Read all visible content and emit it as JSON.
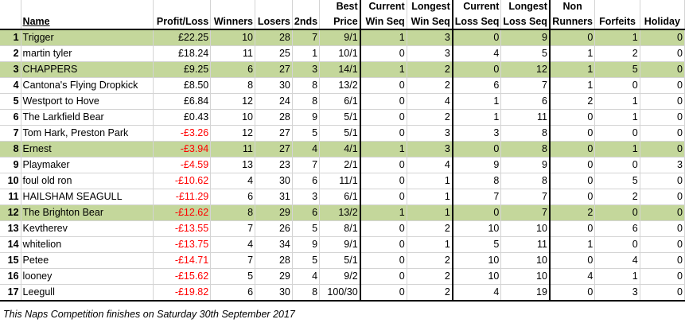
{
  "headers": {
    "name": "Name",
    "profit_loss": "Profit/Loss",
    "winners": "Winners",
    "losers": "Losers",
    "seconds": "2nds",
    "best_price_top": "Best",
    "best_price_bottom": "Price",
    "current_win_top": "Current",
    "current_win_bottom": "Win Seq",
    "longest_win_top": "Longest",
    "longest_win_bottom": "Win Seq",
    "current_loss_top": "Current",
    "current_loss_bottom": "Loss Seq",
    "longest_loss_top": "Longest",
    "longest_loss_bottom": "Loss Seq",
    "non_runners_top": "Non",
    "non_runners_bottom": "Runners",
    "forfeits": "Forfeits",
    "holiday": "Holiday"
  },
  "rows": [
    {
      "rank": "1",
      "name": "Trigger",
      "pl": "£22.25",
      "neg": false,
      "winners": "10",
      "losers": "28",
      "seconds": "7",
      "best": "9/1",
      "cws": "1",
      "lws": "3",
      "cls": "0",
      "lls": "9",
      "nr": "0",
      "forfeits": "1",
      "holiday": "0",
      "highlight": true
    },
    {
      "rank": "2",
      "name": "martin tyler",
      "pl": "£18.24",
      "neg": false,
      "winners": "11",
      "losers": "25",
      "seconds": "1",
      "best": "10/1",
      "cws": "0",
      "lws": "3",
      "cls": "4",
      "lls": "5",
      "nr": "1",
      "forfeits": "2",
      "holiday": "0",
      "highlight": false
    },
    {
      "rank": "3",
      "name": "CHAPPERS",
      "pl": "£9.25",
      "neg": false,
      "winners": "6",
      "losers": "27",
      "seconds": "3",
      "best": "14/1",
      "cws": "1",
      "lws": "2",
      "cls": "0",
      "lls": "12",
      "nr": "1",
      "forfeits": "5",
      "holiday": "0",
      "highlight": true
    },
    {
      "rank": "4",
      "name": "Cantona's Flying Dropkick",
      "pl": "£8.50",
      "neg": false,
      "winners": "8",
      "losers": "30",
      "seconds": "8",
      "best": "13/2",
      "cws": "0",
      "lws": "2",
      "cls": "6",
      "lls": "7",
      "nr": "1",
      "forfeits": "0",
      "holiday": "0",
      "highlight": false
    },
    {
      "rank": "5",
      "name": "Westport to Hove",
      "pl": "£6.84",
      "neg": false,
      "winners": "12",
      "losers": "24",
      "seconds": "8",
      "best": "6/1",
      "cws": "0",
      "lws": "4",
      "cls": "1",
      "lls": "6",
      "nr": "2",
      "forfeits": "1",
      "holiday": "0",
      "highlight": false
    },
    {
      "rank": "6",
      "name": "The Larkfield Bear",
      "pl": "£0.43",
      "neg": false,
      "winners": "10",
      "losers": "28",
      "seconds": "9",
      "best": "5/1",
      "cws": "0",
      "lws": "2",
      "cls": "1",
      "lls": "11",
      "nr": "0",
      "forfeits": "1",
      "holiday": "0",
      "highlight": false
    },
    {
      "rank": "7",
      "name": "Tom Hark, Preston Park",
      "pl": "-£3.26",
      "neg": true,
      "winners": "12",
      "losers": "27",
      "seconds": "5",
      "best": "5/1",
      "cws": "0",
      "lws": "3",
      "cls": "3",
      "lls": "8",
      "nr": "0",
      "forfeits": "0",
      "holiday": "0",
      "highlight": false
    },
    {
      "rank": "8",
      "name": "Ernest",
      "pl": "-£3.94",
      "neg": true,
      "winners": "11",
      "losers": "27",
      "seconds": "4",
      "best": "4/1",
      "cws": "1",
      "lws": "3",
      "cls": "0",
      "lls": "8",
      "nr": "0",
      "forfeits": "1",
      "holiday": "0",
      "highlight": true
    },
    {
      "rank": "9",
      "name": "Playmaker",
      "pl": "-£4.59",
      "neg": true,
      "winners": "13",
      "losers": "23",
      "seconds": "7",
      "best": "2/1",
      "cws": "0",
      "lws": "4",
      "cls": "9",
      "lls": "9",
      "nr": "0",
      "forfeits": "0",
      "holiday": "3",
      "highlight": false
    },
    {
      "rank": "10",
      "name": "foul old ron",
      "pl": "-£10.62",
      "neg": true,
      "winners": "4",
      "losers": "30",
      "seconds": "6",
      "best": "11/1",
      "cws": "0",
      "lws": "1",
      "cls": "8",
      "lls": "8",
      "nr": "0",
      "forfeits": "5",
      "holiday": "0",
      "highlight": false
    },
    {
      "rank": "11",
      "name": "HAILSHAM SEAGULL",
      "pl": "-£11.29",
      "neg": true,
      "winners": "6",
      "losers": "31",
      "seconds": "3",
      "best": "6/1",
      "cws": "0",
      "lws": "1",
      "cls": "7",
      "lls": "7",
      "nr": "0",
      "forfeits": "2",
      "holiday": "0",
      "highlight": false
    },
    {
      "rank": "12",
      "name": "The Brighton Bear",
      "pl": "-£12.62",
      "neg": true,
      "winners": "8",
      "losers": "29",
      "seconds": "6",
      "best": "13/2",
      "cws": "1",
      "lws": "1",
      "cls": "0",
      "lls": "7",
      "nr": "2",
      "forfeits": "0",
      "holiday": "0",
      "highlight": true
    },
    {
      "rank": "13",
      "name": "Kevtherev",
      "pl": "-£13.55",
      "neg": true,
      "winners": "7",
      "losers": "26",
      "seconds": "5",
      "best": "8/1",
      "cws": "0",
      "lws": "2",
      "cls": "10",
      "lls": "10",
      "nr": "0",
      "forfeits": "6",
      "holiday": "0",
      "highlight": false
    },
    {
      "rank": "14",
      "name": "whitelion",
      "pl": "-£13.75",
      "neg": true,
      "winners": "4",
      "losers": "34",
      "seconds": "9",
      "best": "9/1",
      "cws": "0",
      "lws": "1",
      "cls": "5",
      "lls": "11",
      "nr": "1",
      "forfeits": "0",
      "holiday": "0",
      "highlight": false
    },
    {
      "rank": "15",
      "name": "Petee",
      "pl": "-£14.71",
      "neg": true,
      "winners": "7",
      "losers": "28",
      "seconds": "5",
      "best": "5/1",
      "cws": "0",
      "lws": "2",
      "cls": "10",
      "lls": "10",
      "nr": "0",
      "forfeits": "4",
      "holiday": "0",
      "highlight": false
    },
    {
      "rank": "16",
      "name": "looney",
      "pl": "-£15.62",
      "neg": true,
      "winners": "5",
      "losers": "29",
      "seconds": "4",
      "best": "9/2",
      "cws": "0",
      "lws": "2",
      "cls": "10",
      "lls": "10",
      "nr": "4",
      "forfeits": "1",
      "holiday": "0",
      "highlight": false
    },
    {
      "rank": "17",
      "name": "Leegull",
      "pl": "-£19.82",
      "neg": true,
      "winners": "6",
      "losers": "30",
      "seconds": "8",
      "best": "100/30",
      "cws": "0",
      "lws": "2",
      "cls": "4",
      "lls": "19",
      "nr": "0",
      "forfeits": "3",
      "holiday": "0",
      "highlight": false
    }
  ],
  "footer": "This Naps Competition finishes on Saturday 30th September 2017",
  "colors": {
    "highlight": "#c4d79b",
    "negative": "#ff0000"
  }
}
